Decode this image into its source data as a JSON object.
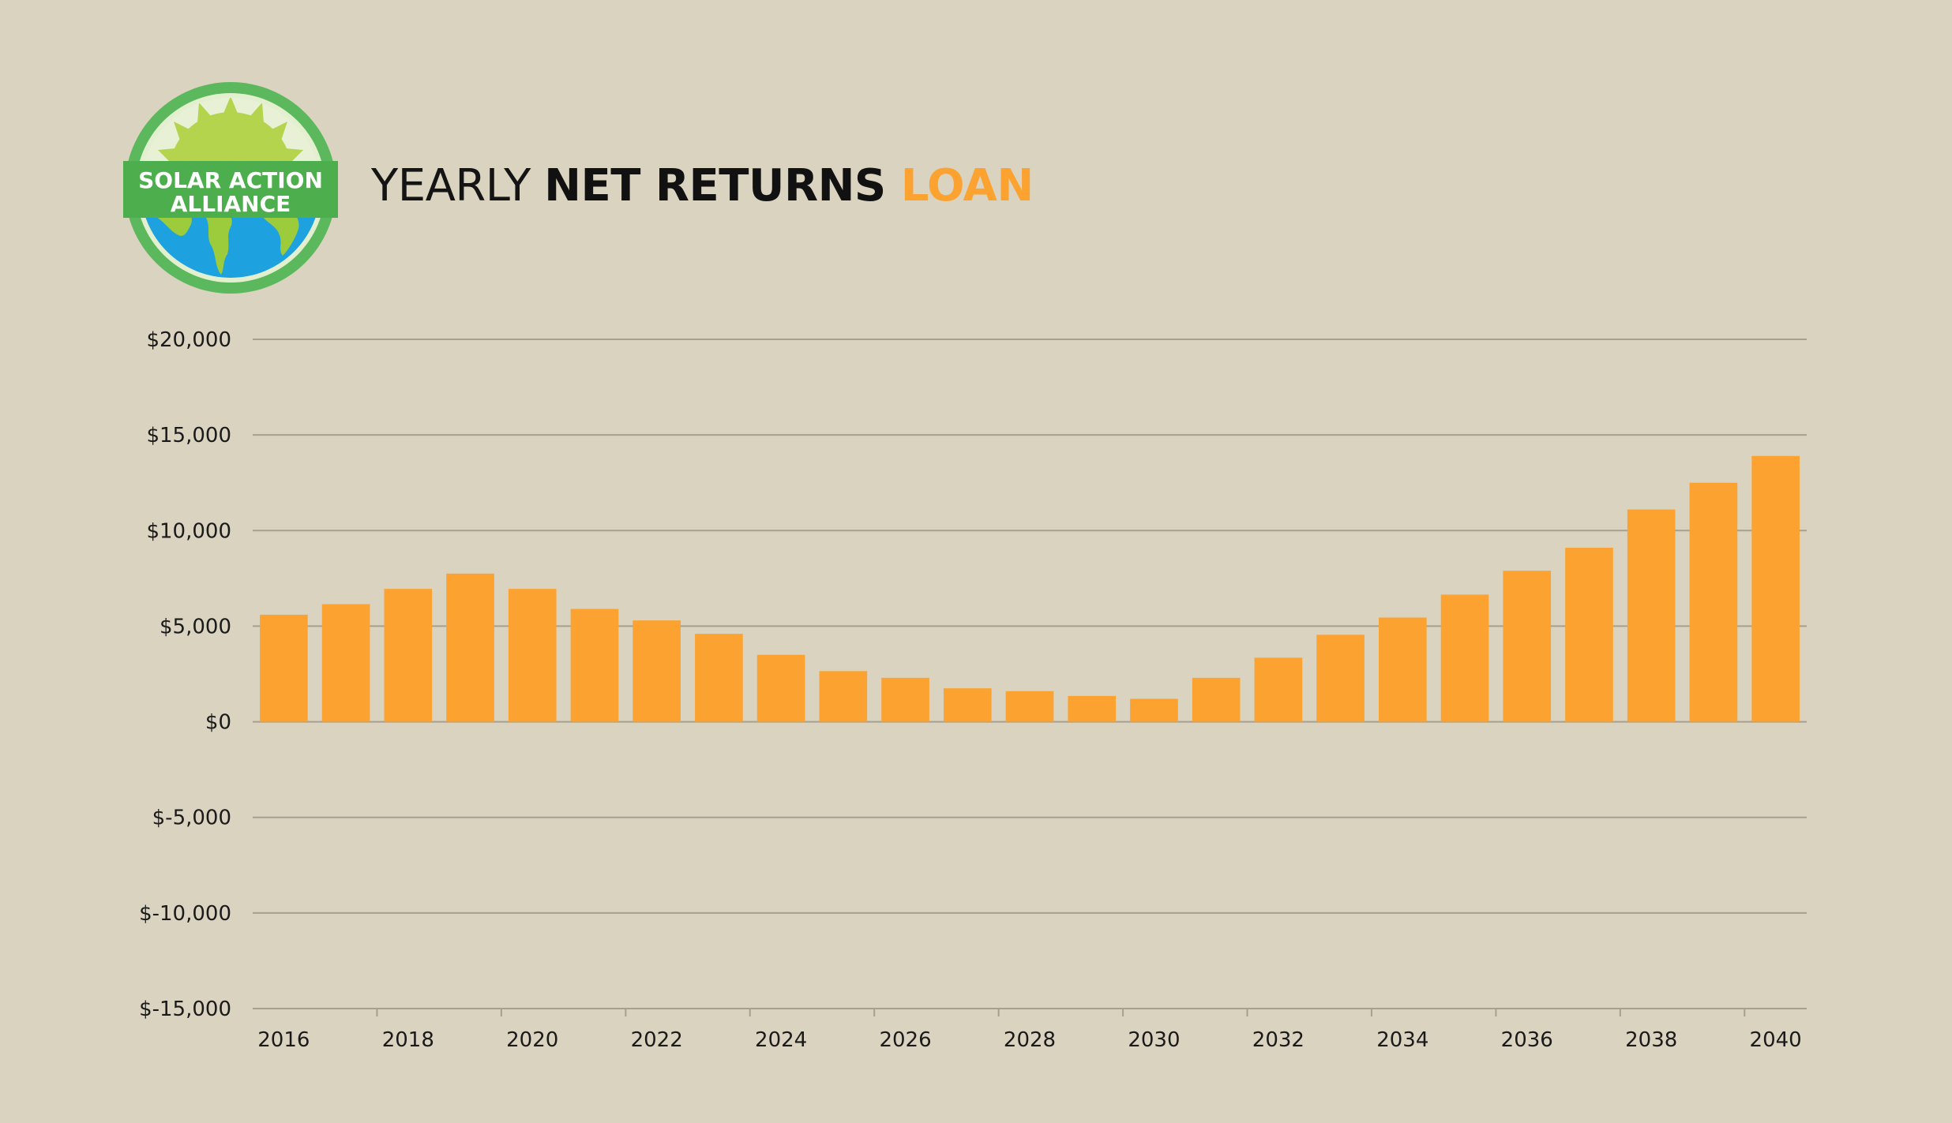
{
  "logo": {
    "text_line1": "SOLAR ACTION",
    "text_line2": "ALLIANCE",
    "colors": {
      "ring": "#5cb85c",
      "sun": "#b5d44e",
      "globe": "#1da1df",
      "land": "#9ccc3c",
      "banner": "#4cae4c"
    }
  },
  "title": {
    "part1": "YEARLY ",
    "part2": "NET RETURNS ",
    "part3": "LOAN"
  },
  "colors": {
    "background": "#dad3c0",
    "bar": "#fba230",
    "gridline": "#a7a08f",
    "accent": "#fba230"
  },
  "chart_data": {
    "type": "bar",
    "title": "YEARLY NET RETURNS LOAN",
    "xlabel": "",
    "ylabel": "",
    "ylim": [
      -15000,
      20000
    ],
    "y_ticks": [
      20000,
      15000,
      10000,
      5000,
      0,
      -5000,
      -10000,
      -15000
    ],
    "y_tick_labels": [
      "$20,000",
      "$15,000",
      "$10,000",
      "$5,000",
      "$0",
      "$-5,000",
      "$-10,000",
      "$-15,000"
    ],
    "categories": [
      "2016",
      "2017",
      "2018",
      "2019",
      "2020",
      "2021",
      "2022",
      "2023",
      "2024",
      "2025",
      "2026",
      "2027",
      "2028",
      "2029",
      "2030",
      "2031",
      "2032",
      "2033",
      "2034",
      "2035",
      "2036",
      "2037",
      "2038",
      "2039",
      "2040"
    ],
    "x_tick_labels": [
      "2016",
      "2018",
      "2020",
      "2022",
      "2024",
      "2026",
      "2028",
      "2030",
      "2032",
      "2034",
      "2036",
      "2038",
      "2040"
    ],
    "values": [
      5600,
      6150,
      6950,
      7750,
      6950,
      5900,
      5300,
      4600,
      3500,
      2650,
      2300,
      1750,
      1600,
      1350,
      1200,
      2300,
      3350,
      4550,
      5450,
      6650,
      7900,
      9100,
      11100,
      12500,
      13900
    ],
    "grid": true,
    "legend": "none"
  }
}
